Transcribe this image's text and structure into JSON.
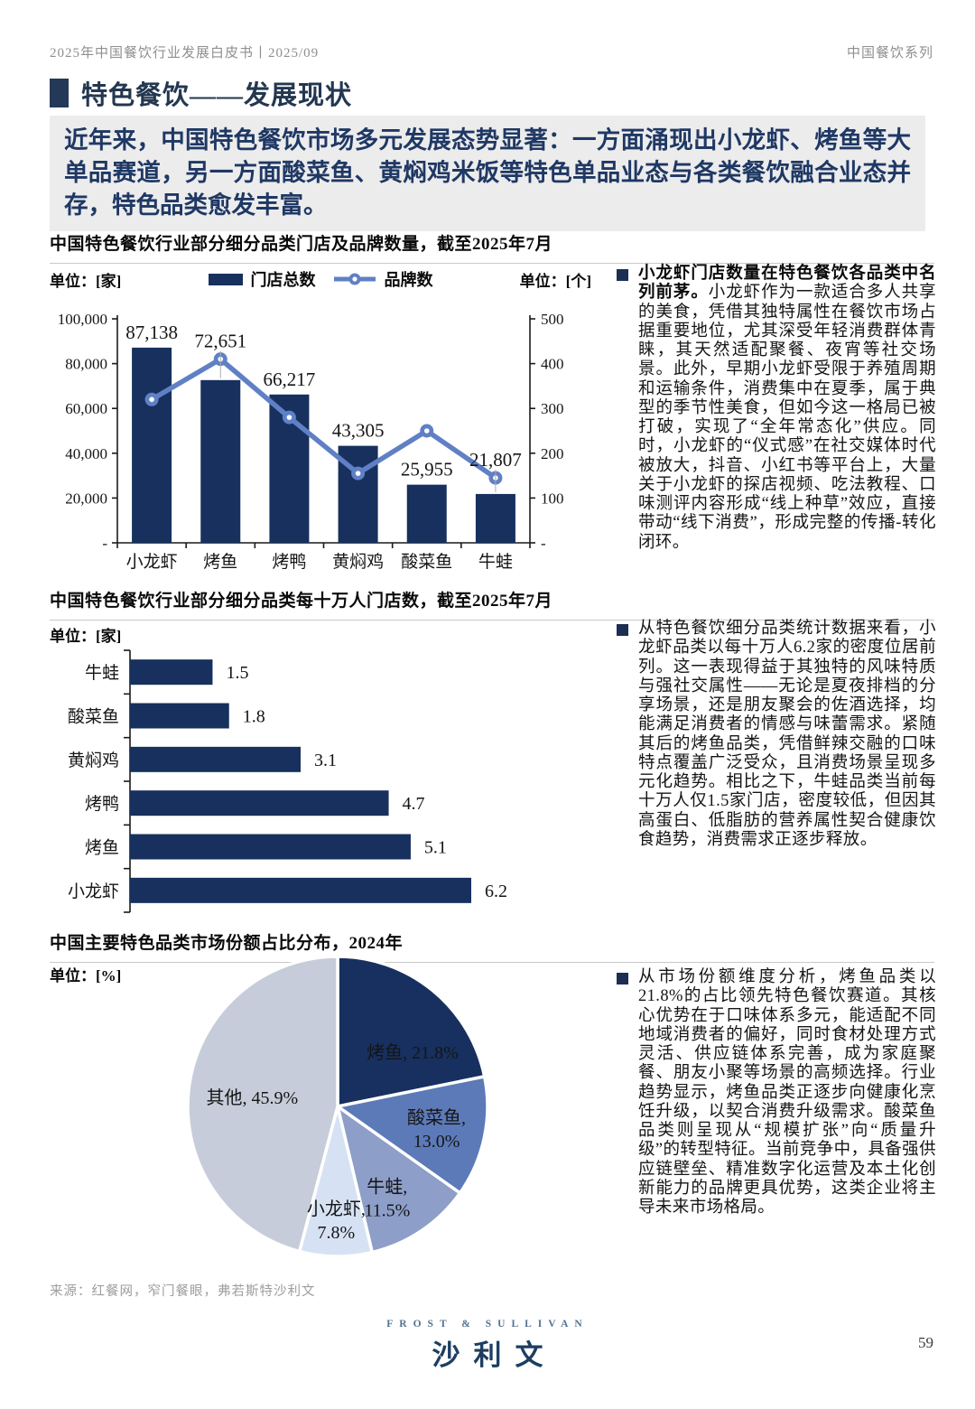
{
  "colors": {
    "navy": "#17305e",
    "line_blue": "#6080c5",
    "accent": "#243858",
    "intro_bg": "#ececec",
    "intro_text": "#1f3864",
    "rule": "#c9c9c9",
    "muted": "#8f8f8f"
  },
  "header": {
    "left": "2025年中国餐饮行业发展白皮书丨2025/09",
    "right": "中国餐饮系列"
  },
  "page_title": "特色餐饮——发展现状",
  "intro": "近年来，中国特色餐饮市场多元发展态势显著：一方面涌现出小龙虾、烤鱼等大单品赛道，另一方面酸菜鱼、黄焖鸡米饭等特色单品业态与各类餐饮融合业态并存，特色品类愈发丰富。",
  "sections": [
    {
      "title": "中国特色餐饮行业部分细分品类门店及品牌数量，截至2025年7月",
      "unit_left": "单位：[家]",
      "unit_right": "单位：[个]",
      "legend": [
        {
          "label": "门店总数"
        },
        {
          "label": "品牌数"
        }
      ],
      "bullet_lead": "小龙虾门店数量在特色餐饮各品类中名列前茅。",
      "bullet_body": "小龙虾作为一款适合多人共享的美食，凭借其独特属性在餐饮市场占据重要地位，尤其深受年轻消费群体青睐，其天然适配聚餐、夜宵等社交场景。此外，早期小龙虾受限于养殖周期和运输条件，消费集中在夏季，属于典型的季节性美食，但如今这一格局已被打破，实现了“全年常态化”供应。同时，小龙虾的“仪式感”在社交媒体时代被放大，抖音、小红书等平台上，大量关于小龙虾的探店视频、吃法教程、口味测评内容形成“线上种草”效应，直接带动“线下消费”，形成完整的传播-转化闭环。"
    },
    {
      "title": "中国特色餐饮行业部分细分品类每十万人门店数，截至2025年7月",
      "unit_left": "单位：[家]",
      "bullet_body": "从特色餐饮细分品类统计数据来看，小龙虾品类以每十万人6.2家的密度位居前列。这一表现得益于其独特的风味特质与强社交属性——无论是夏夜排档的分享场景，还是朋友聚会的佐酒选择，均能满足消费者的情感与味蕾需求。紧随其后的烤鱼品类，凭借鲜辣交融的口味特点覆盖广泛受众，且消费场景呈现多元化趋势。相比之下，牛蛙品类当前每十万人仅1.5家门店，密度较低，但因其高蛋白、低脂肪的营养属性契合健康饮食趋势，消费需求正逐步释放。"
    },
    {
      "title": "中国主要特色品类市场份额占比分布，2024年",
      "unit_left": "单位：[%]",
      "bullet_body": "从市场份额维度分析，烤鱼品类以21.8%的占比领先特色餐饮赛道。其核心优势在于口味体系多元，能适配不同地域消费者的偏好，同时食材处理方式灵活、供应链体系完善，成为家庭聚餐、朋友小聚等场景的高频选择。行业趋势显示，烤鱼品类正逐步向健康化烹饪升级，以契合消费升级需求。酸菜鱼品类则呈现从“规模扩张”向“质量升级”的转型特征。当前竞争中，具备强供应链壁垒、精准数字化运营及本土化创新能力的品牌更具优势，这类企业将主导未来市场格局。"
    }
  ],
  "chart_data": [
    {
      "type": "bar",
      "title": "中国特色餐饮行业部分细分品类门店及品牌数量，截至2025年7月",
      "categories": [
        "小龙虾",
        "烤鱼",
        "烤鸭",
        "黄焖鸡",
        "酸菜鱼",
        "牛蛙"
      ],
      "series": [
        {
          "name": "门店总数",
          "type": "bar",
          "axis": "left",
          "color": "#17305e",
          "values": [
            87138,
            72651,
            66217,
            43305,
            25955,
            21807
          ],
          "labels": [
            "87,138",
            "72,651",
            "66,217",
            "43,305",
            "25,955",
            "21,807"
          ]
        },
        {
          "name": "品牌数",
          "type": "line",
          "axis": "right",
          "color": "#6080c5",
          "values": [
            320,
            410,
            280,
            155,
            250,
            145
          ]
        }
      ],
      "left_axis": {
        "unit": "单位：[家]",
        "max": 100000,
        "ticks": [
          "100,000",
          "80,000",
          "60,000",
          "40,000",
          "20,000",
          "-"
        ]
      },
      "right_axis": {
        "unit": "单位：[个]",
        "max": 500,
        "ticks": [
          "500",
          "400",
          "300",
          "200",
          "100",
          "-"
        ]
      },
      "legend_position": "top"
    },
    {
      "type": "bar",
      "orientation": "horizontal",
      "title": "中国特色餐饮行业部分细分品类每十万人门店数，截至2025年7月",
      "unit": "单位：[家]",
      "categories": [
        "牛蛙",
        "酸菜鱼",
        "黄焖鸡",
        "烤鸭",
        "烤鱼",
        "小龙虾"
      ],
      "values": [
        1.5,
        1.8,
        3.1,
        4.7,
        5.1,
        6.2
      ],
      "labels": [
        "1.5",
        "1.8",
        "3.1",
        "4.7",
        "5.1",
        "6.2"
      ],
      "xlim": [
        0,
        6.8
      ],
      "bar_color": "#17305e",
      "grid": false
    },
    {
      "type": "pie",
      "title": "中国主要特色品类市场份额占比分布，2024年",
      "unit": "单位：[%]",
      "start_angle_deg": 0,
      "direction": "clockwise",
      "slices": [
        {
          "label": "烤鱼",
          "value": 21.8,
          "display": "烤鱼, 21.8%",
          "color": "#17305f",
          "text_color": "#ffffff"
        },
        {
          "label": "酸菜鱼",
          "value": 13.0,
          "display": "酸菜鱼,\n13.0%",
          "color": "#5c7ab8",
          "text_color": "#ffffff"
        },
        {
          "label": "牛蛙",
          "value": 11.5,
          "display": "牛蛙,\n11.5%",
          "color": "#8d9ec8",
          "text_color": "#1a1a1a"
        },
        {
          "label": "小龙虾",
          "value": 7.8,
          "display": "小龙虾,\n7.8%",
          "color": "#d6e2f4",
          "text_color": "#1a1a1a"
        },
        {
          "label": "其他",
          "value": 45.9,
          "display": "其他, 45.9%",
          "color": "#c6ccd9",
          "text_color": "#1a1a1a"
        }
      ]
    }
  ],
  "footer": {
    "source": "来源：红餐网，窄门餐眼，弗若斯特沙利文",
    "logo_top": "FROST & SULLIVAN",
    "logo_main": "沙利文",
    "page_number": "59"
  }
}
